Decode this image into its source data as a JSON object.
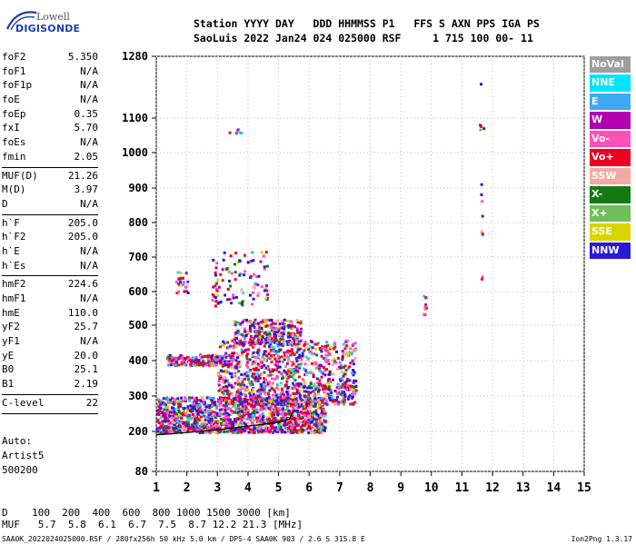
{
  "logo": {
    "line1": "Lowell",
    "line2": "DIGISONDE"
  },
  "header": {
    "line1": "Station YYYY DAY   DDD HHMMSS P1   FFS S AXN PPS IGA PS",
    "line2": "SaoLuis 2022 Jan24 024 025000 RSF     1 715 100 00- 11"
  },
  "params": {
    "group1": [
      {
        "key": "foF2",
        "value": "5.350"
      },
      {
        "key": "foF1",
        "value": "N/A"
      },
      {
        "key": "foF1p",
        "value": "N/A"
      },
      {
        "key": "foE",
        "value": "N/A"
      },
      {
        "key": "foEp",
        "value": "0.35"
      },
      {
        "key": "fxI",
        "value": "5.70"
      },
      {
        "key": "foEs",
        "value": "N/A"
      },
      {
        "key": "fmin",
        "value": "2.05"
      }
    ],
    "group2": [
      {
        "key": "MUF(D)",
        "value": "21.26"
      },
      {
        "key": "M(D)",
        "value": "3.97"
      },
      {
        "key": "D",
        "value": "N/A"
      }
    ],
    "group3": [
      {
        "key": "h`F",
        "value": "205.0"
      },
      {
        "key": "h`F2",
        "value": "205.0"
      },
      {
        "key": "h`E",
        "value": "N/A"
      },
      {
        "key": "h`Es",
        "value": "N/A"
      }
    ],
    "group4": [
      {
        "key": "hmF2",
        "value": "224.6"
      },
      {
        "key": "hmF1",
        "value": "N/A"
      },
      {
        "key": "hmE",
        "value": "110.0"
      },
      {
        "key": "yF2",
        "value": "25.7"
      },
      {
        "key": "yF1",
        "value": "N/A"
      },
      {
        "key": "yE",
        "value": "20.0"
      },
      {
        "key": "B0",
        "value": "25.1"
      },
      {
        "key": "B1",
        "value": "2.19"
      }
    ],
    "group5": [
      {
        "key": "C-level",
        "value": "22"
      }
    ]
  },
  "auto": {
    "line1": "Auto:",
    "line2": "Artist5",
    "line3": "500200"
  },
  "legend": [
    {
      "label": "NoVal",
      "color": "#9e9e9e"
    },
    {
      "label": "NNE",
      "color": "#00e5ff"
    },
    {
      "label": "E",
      "color": "#3fa9f5"
    },
    {
      "label": "W",
      "color": "#b000b0"
    },
    {
      "label": "Vo-",
      "color": "#ff4fb8"
    },
    {
      "label": "Vo+",
      "color": "#ee0022"
    },
    {
      "label": "SSW",
      "color": "#f4a9a0"
    },
    {
      "label": "X-",
      "color": "#137a13"
    },
    {
      "label": "X+",
      "color": "#6fbf5a"
    },
    {
      "label": "SSE",
      "color": "#d9d400"
    },
    {
      "label": "NNW",
      "color": "#2a1ad8"
    }
  ],
  "footer": {
    "line1": "D    100  200  400  600  800 1000 1500 3000 [km]",
    "line2": "MUF   5.7  5.8  6.1  6.7  7.5  8.7 12.2 21.3 [MHz]",
    "line3": "SAA0K_2022024025000.RSF / 280fx256h 50 kHz 5.0 km / DPS-4 SAA0K 903 / 2.6 S 315.8 E",
    "version": "Ion2Png 1.3.17"
  },
  "chart_data": {
    "type": "scatter",
    "x_ticks": [
      "1",
      "2",
      "3",
      "4",
      "5",
      "6",
      "7",
      "8",
      "9",
      "10",
      "11",
      "12",
      "13",
      "14",
      "15"
    ],
    "y_ticks": [
      "80",
      "200",
      "300",
      "400",
      "500",
      "600",
      "700",
      "800",
      "900",
      "1000",
      "1100",
      "1280"
    ],
    "xlim": [
      1,
      15
    ],
    "ylim": [
      80,
      1280
    ],
    "y_scale": "nonlinear (ionogram virtual height)",
    "grid": "dotted",
    "legend_position": "right",
    "trace_x": [
      1,
      1.5,
      2,
      2.5,
      3,
      3.5,
      4,
      4.5,
      5,
      5.35,
      5.5
    ],
    "trace_y": [
      190,
      193,
      197,
      201,
      205,
      210,
      215,
      220,
      227,
      235,
      260
    ],
    "clusters": [
      {
        "x": [
          1.0,
          6.5
        ],
        "y": [
          200,
          300
        ],
        "n": 1400
      },
      {
        "x": [
          3.0,
          7.5
        ],
        "y": [
          280,
          460
        ],
        "n": 1000
      },
      {
        "x": [
          1.3,
          3.5
        ],
        "y": [
          390,
          420
        ],
        "n": 180
      },
      {
        "x": [
          3.5,
          5.7
        ],
        "y": [
          450,
          520
        ],
        "n": 260
      },
      {
        "x": [
          2.8,
          4.6
        ],
        "y": [
          560,
          720
        ],
        "n": 100
      },
      {
        "x": [
          1.6,
          2.0
        ],
        "y": [
          600,
          660
        ],
        "n": 25
      },
      {
        "x": [
          3.3,
          3.8
        ],
        "y": [
          1060,
          1070
        ],
        "n": 6
      },
      {
        "x": [
          9.7,
          9.8
        ],
        "y": [
          530,
          630
        ],
        "n": 10
      },
      {
        "x": [
          11.5,
          11.7
        ],
        "y": [
          640,
          1210
        ],
        "n": 14
      }
    ]
  }
}
